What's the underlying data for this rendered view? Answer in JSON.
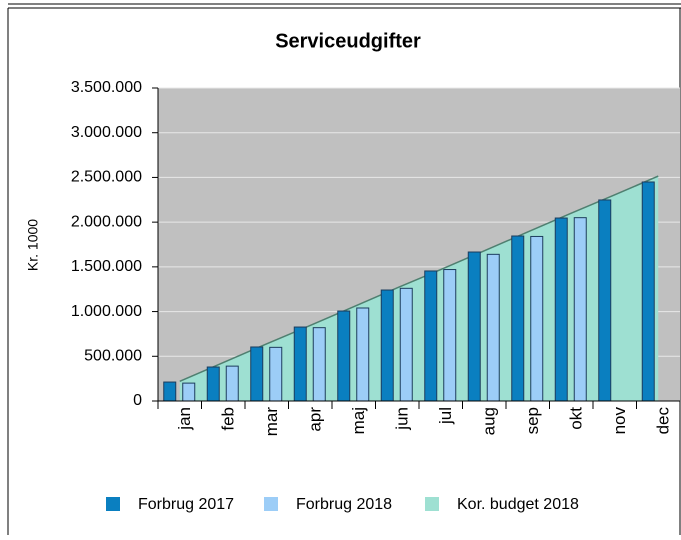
{
  "chart_data": {
    "type": "bar",
    "title": "Serviceudgifter",
    "y_label": "Kr. 1000",
    "categories": [
      "jan",
      "feb",
      "mar",
      "apr",
      "maj",
      "jun",
      "jul",
      "aug",
      "sep",
      "okt",
      "nov",
      "dec"
    ],
    "series": [
      {
        "name": "Forbrug 2017",
        "type": "bar",
        "color": "#0a7fc0",
        "values": [
          212000,
          380000,
          604000,
          827000,
          1006000,
          1241000,
          1454000,
          1666000,
          1845000,
          2046000,
          2248000,
          2449000
        ]
      },
      {
        "name": "Forbrug 2018",
        "type": "bar",
        "color": "#9ccdf7",
        "values": [
          200000,
          390000,
          600000,
          820000,
          1040000,
          1260000,
          1470000,
          1640000,
          1840000,
          2050000,
          null,
          null
        ]
      },
      {
        "name": "Kor. budget 2018",
        "type": "area",
        "color": "#9ee0d2",
        "values": [
          220000,
          430000,
          640000,
          845000,
          1055000,
          1265000,
          1470000,
          1680000,
          1890000,
          2100000,
          2305000,
          2515000
        ]
      }
    ],
    "ylim": [
      0,
      3500000
    ],
    "yticks": [
      0,
      {
        "value": 500000,
        "label": "500.000"
      },
      {
        "value": 1000000,
        "label": "1.000.000"
      },
      {
        "value": 1500000,
        "label": "1.500.000"
      },
      {
        "value": 2000000,
        "label": "2.000.000"
      },
      {
        "value": 2500000,
        "label": "2.500.000"
      },
      {
        "value": 3000000,
        "label": "3.000.000"
      },
      {
        "value": 3500000,
        "label": "3.500.000"
      }
    ],
    "grid": true,
    "legend": "bottom"
  }
}
